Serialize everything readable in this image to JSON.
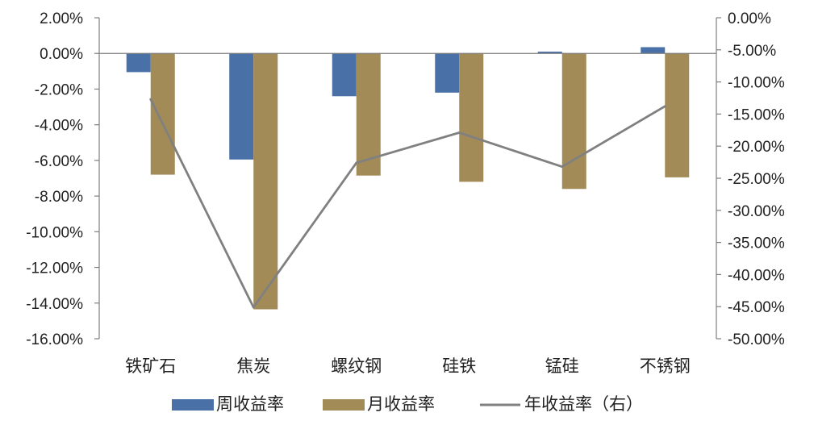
{
  "chart_data": {
    "type": "bar",
    "categories": [
      "铁矿石",
      "焦炭",
      "螺纹钢",
      "硅铁",
      "锰硅",
      "不锈钢"
    ],
    "series": [
      {
        "name": "周收益率",
        "kind": "bar",
        "axis": "left",
        "color": "#4a71a7",
        "values": [
          -1.05,
          -5.95,
          -2.4,
          -2.2,
          0.1,
          0.35
        ]
      },
      {
        "name": "月收益率",
        "kind": "bar",
        "axis": "left",
        "color": "#a38b58",
        "values": [
          -6.8,
          -14.35,
          -6.85,
          -7.2,
          -7.6,
          -6.95
        ]
      },
      {
        "name": "年收益率（右）",
        "kind": "line",
        "axis": "right",
        "color": "#808080",
        "values": [
          -12.7,
          -45.1,
          -22.6,
          -17.9,
          -23.2,
          -13.8
        ]
      }
    ],
    "y_left": {
      "min": -16,
      "max": 2,
      "step": 2,
      "tick_labels": [
        "2.00%",
        "0.00%",
        "-2.00%",
        "-4.00%",
        "-6.00%",
        "-8.00%",
        "-10.00%",
        "-12.00%",
        "-14.00%",
        "-16.00%"
      ]
    },
    "y_right": {
      "min": -50,
      "max": 0,
      "step": 5,
      "tick_labels": [
        "0.00%",
        "-5.00%",
        "-10.00%",
        "-15.00%",
        "-20.00%",
        "-25.00%",
        "-30.00%",
        "-35.00%",
        "-40.00%",
        "-45.00%",
        "-50.00%"
      ]
    },
    "legend_position": "bottom"
  }
}
